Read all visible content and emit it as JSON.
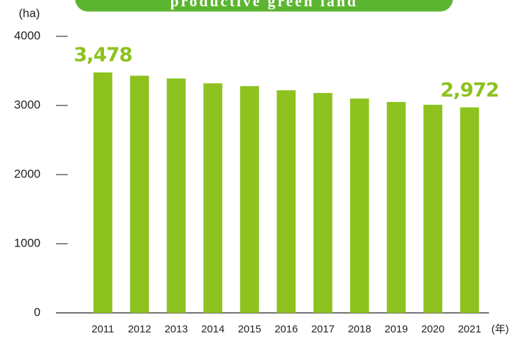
{
  "chart_data": {
    "type": "bar",
    "title": "productive green land",
    "y_label": "(ha)",
    "x_label": "(年)",
    "categories": [
      "2011",
      "2012",
      "2013",
      "2014",
      "2015",
      "2016",
      "2017",
      "2018",
      "2019",
      "2020",
      "2021"
    ],
    "values": [
      3478,
      3430,
      3390,
      3320,
      3280,
      3220,
      3180,
      3100,
      3050,
      3010,
      2972
    ],
    "value_labels": [
      "3,478",
      null,
      null,
      null,
      null,
      null,
      null,
      null,
      null,
      null,
      "2,972"
    ],
    "color": "#8dc21f",
    "ylim": [
      0,
      4000
    ],
    "yticks": [
      0,
      1000,
      2000,
      3000,
      4000
    ]
  }
}
